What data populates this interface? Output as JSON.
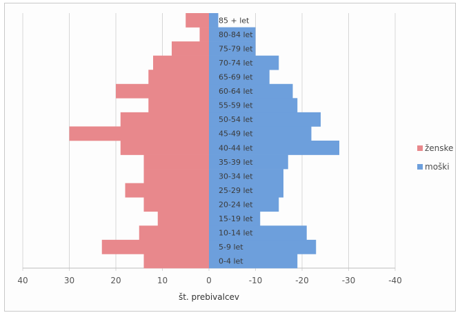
{
  "chart_data": {
    "type": "bar",
    "orientation": "horizontal",
    "layout": "population-pyramid",
    "categories": [
      "0-4 let",
      "5-9 let",
      "10-14 let",
      "15-19 let",
      "20-24 let",
      "25-29 let",
      "30-34 let",
      "35-39 let",
      "40-44 let",
      "45-49 let",
      "50-54 let",
      "55-59 let",
      "60-64 let",
      "65-69 let",
      "70-74 let",
      "75-79 let",
      "80-84 let",
      "85 + let"
    ],
    "series": [
      {
        "name": "ženske",
        "color": "#e8888c",
        "side": "left",
        "values": [
          14,
          23,
          15,
          11,
          14,
          18,
          14,
          14,
          19,
          30,
          19,
          13,
          20,
          13,
          12,
          8,
          2,
          5
        ]
      },
      {
        "name": "moški",
        "color": "#6d9fdc",
        "side": "right",
        "values": [
          19,
          23,
          21,
          11,
          15,
          16,
          16,
          17,
          28,
          22,
          24,
          19,
          18,
          13,
          15,
          10,
          10,
          2
        ]
      }
    ],
    "xlim": [
      40,
      -40
    ],
    "x_ticks": [
      "40",
      "30",
      "20",
      "10",
      "0",
      "-10",
      "-20",
      "-30",
      "-40"
    ],
    "xlabel": "št. prebivalcev",
    "ylabel": "",
    "title": "",
    "grid": "vertical",
    "legend": "right"
  }
}
